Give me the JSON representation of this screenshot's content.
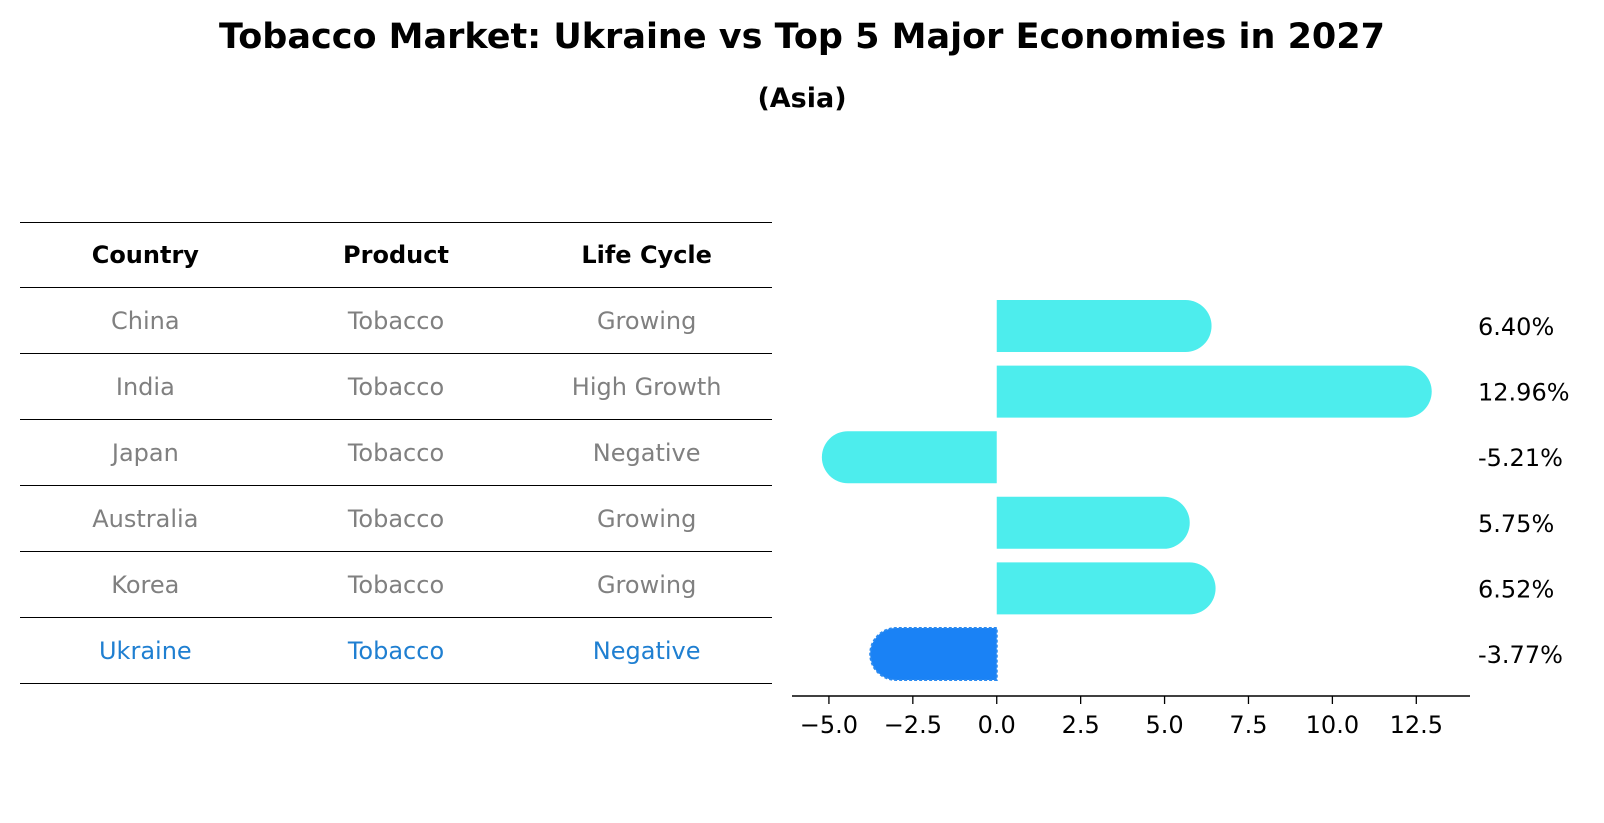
{
  "title": "Tobacco Market: Ukraine vs Top 5 Major Economies in 2027",
  "subtitle": "(Asia)",
  "table": {
    "headers": [
      "Country",
      "Product",
      "Life Cycle"
    ],
    "rows": [
      {
        "country": "China",
        "product": "Tobacco",
        "life_cycle": "Growing"
      },
      {
        "country": "India",
        "product": "Tobacco",
        "life_cycle": "High Growth"
      },
      {
        "country": "Japan",
        "product": "Tobacco",
        "life_cycle": "Negative"
      },
      {
        "country": "Australia",
        "product": "Tobacco",
        "life_cycle": "Growing"
      },
      {
        "country": "Korea",
        "product": "Tobacco",
        "life_cycle": "Growing"
      },
      {
        "country": "Ukraine",
        "product": "Tobacco",
        "life_cycle": "Negative"
      }
    ]
  },
  "chart_data": {
    "type": "bar",
    "orientation": "horizontal",
    "categories": [
      "China",
      "India",
      "Japan",
      "Australia",
      "Korea",
      "Ukraine"
    ],
    "values": [
      6.4,
      12.96,
      -5.21,
      5.75,
      6.52,
      -3.77
    ],
    "value_labels": [
      "6.40%",
      "12.96%",
      "-5.21%",
      "5.75%",
      "6.52%",
      "-3.77%"
    ],
    "highlight": "Ukraine",
    "xlim": [
      -6.1,
      14.1
    ],
    "xticks": [
      -5.0,
      -2.5,
      0.0,
      2.5,
      5.0,
      7.5,
      10.0,
      12.5
    ],
    "xtick_labels": [
      "−5.0",
      "−2.5",
      "0.0",
      "2.5",
      "5.0",
      "7.5",
      "10.0",
      "12.5"
    ],
    "grid": false
  },
  "colors": {
    "bar": "#4deded",
    "highlight_bar": "#1a82f5",
    "highlight_text": "#1f7fd1",
    "muted_text": "#808080",
    "axis": "#000000"
  }
}
